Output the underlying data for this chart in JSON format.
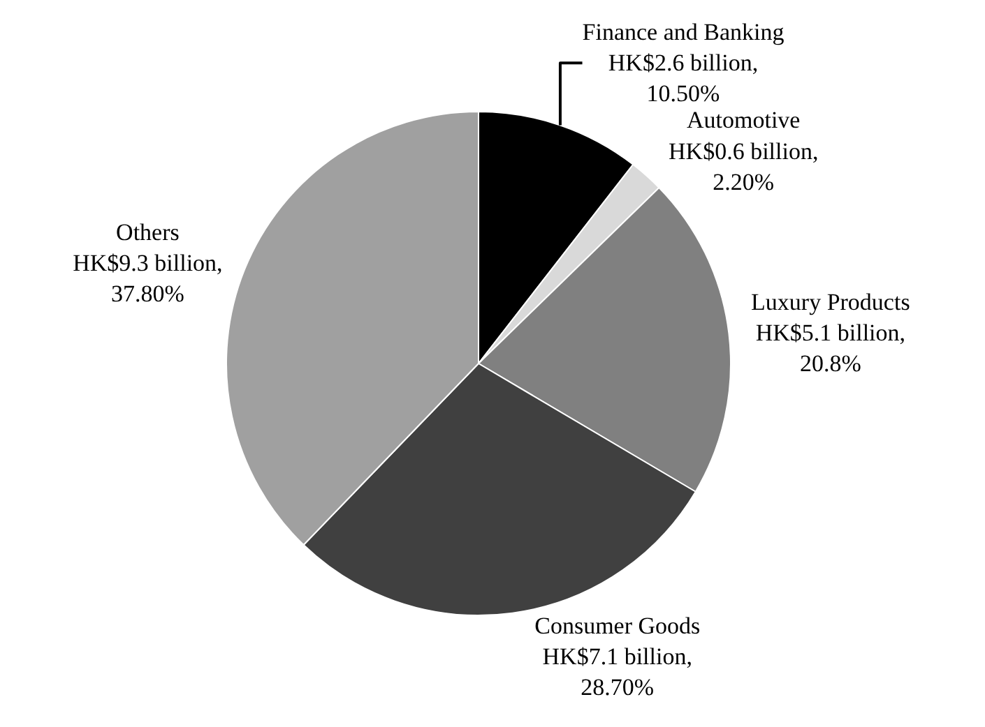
{
  "chart_data": {
    "type": "pie",
    "categories": [
      "Finance and Banking",
      "Automotive",
      "Luxury Products",
      "Consumer Goods",
      "Others"
    ],
    "values": [
      10.5,
      2.2,
      20.8,
      28.7,
      37.8
    ],
    "value_labels": [
      "HK$2.6 billion,\n10.50%",
      "HK$0.6 billion,\n2.20%",
      "HK$5.1 billion,\n20.8%",
      "HK$7.1 billion,\n28.70%",
      "HK$9.3 billion,\n37.80%"
    ],
    "colors": [
      "#000000",
      "#d9d9d9",
      "#808080",
      "#404040",
      "#a0a0a0"
    ],
    "legend": false
  }
}
